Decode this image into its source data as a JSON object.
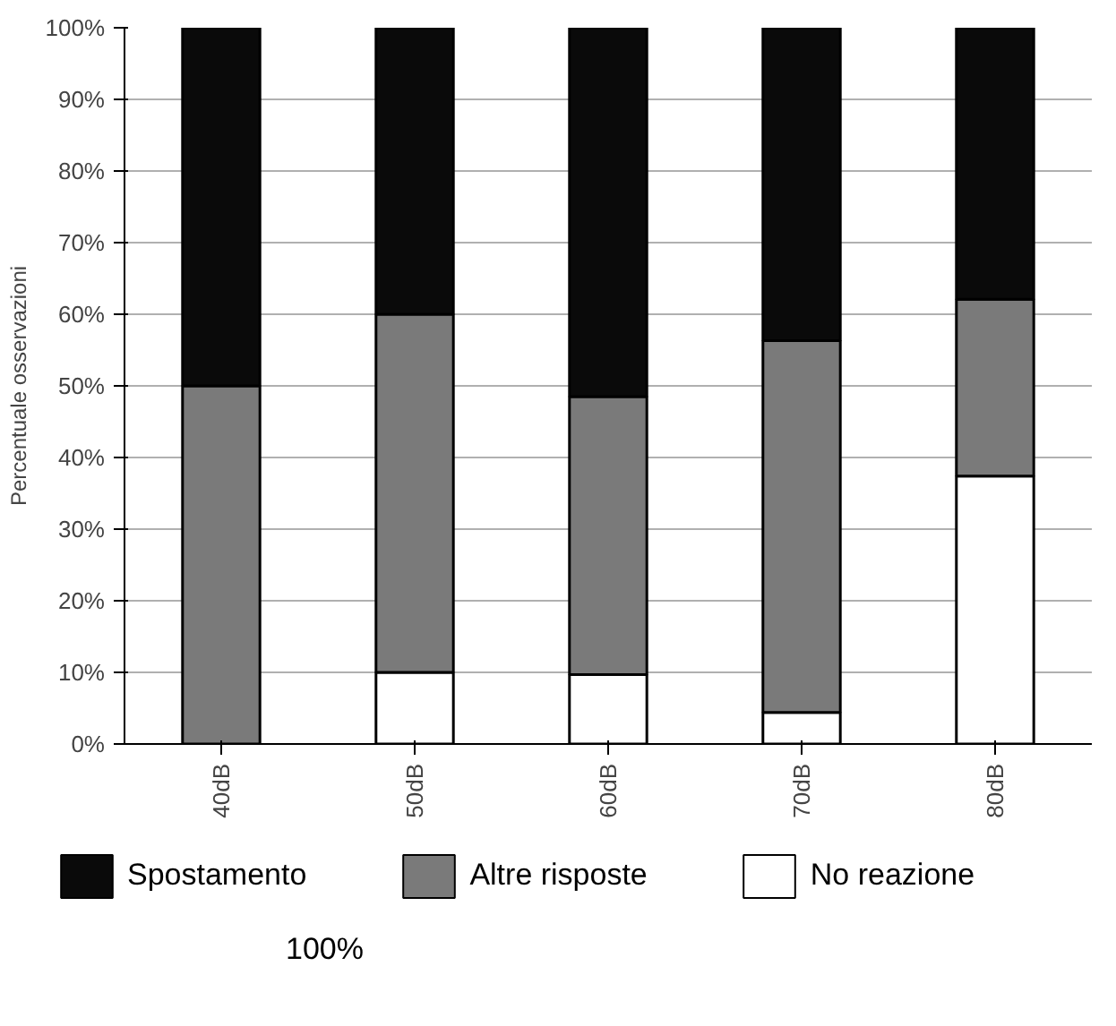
{
  "chart_data": {
    "type": "bar",
    "stacked": true,
    "ylabel": "Percentuale osservazioni",
    "categories": [
      "40dB",
      "50dB",
      "60dB",
      "70dB",
      "80dB"
    ],
    "series": [
      {
        "name": "No reazione",
        "color": "#ffffff",
        "values": [
          0,
          10,
          9.7,
          4.4,
          37.4
        ]
      },
      {
        "name": "Altre risposte",
        "color": "#7a7a7a",
        "values": [
          50,
          50,
          38.8,
          51.9,
          24.7
        ]
      },
      {
        "name": "Spostamento",
        "color": "#0a0a0a",
        "values": [
          50,
          40,
          51.5,
          43.7,
          37.9
        ]
      }
    ],
    "ylim": [
      0,
      100
    ],
    "yticks": [
      {
        "value": 0,
        "label": "0%"
      },
      {
        "value": 10,
        "label": "10%"
      },
      {
        "value": 20,
        "label": "20%"
      },
      {
        "value": 30,
        "label": "30%"
      },
      {
        "value": 40,
        "label": "40%"
      },
      {
        "value": 50,
        "label": "50%"
      },
      {
        "value": 60,
        "label": "60%"
      },
      {
        "value": 70,
        "label": "70%"
      },
      {
        "value": 80,
        "label": "80%"
      },
      {
        "value": 90,
        "label": "90%"
      },
      {
        "value": 100,
        "label": "100%"
      }
    ],
    "grid": "y",
    "legend": "bottom",
    "annotations": [
      "100%"
    ]
  }
}
